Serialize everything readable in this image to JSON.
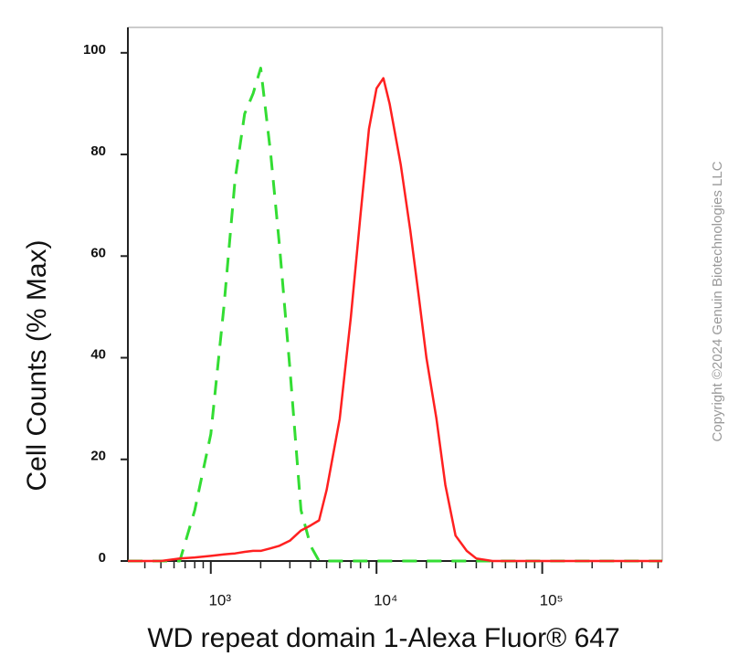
{
  "chart_data": {
    "type": "line",
    "y_label": "Cell Counts (% Max)",
    "x_label": "WD repeat domain 1-Alexa Fluor® 647",
    "copyright": "Copyright ©2024 Genuin Biotechnologies LLC",
    "xscale": "log",
    "xlim": [
      316,
      530000
    ],
    "ylim": [
      0,
      105
    ],
    "xticks": [
      {
        "value": 1000,
        "label": "10³"
      },
      {
        "value": 10000,
        "label": "10⁴"
      },
      {
        "value": 100000,
        "label": "10⁵"
      }
    ],
    "xticks_minor": [
      400,
      500,
      600,
      700,
      800,
      900,
      2000,
      3000,
      4000,
      5000,
      6000,
      7000,
      8000,
      9000,
      20000,
      30000,
      40000,
      50000,
      60000,
      70000,
      80000,
      90000,
      200000,
      300000,
      400000,
      500000
    ],
    "yticks": [
      0,
      20,
      40,
      60,
      80,
      100
    ],
    "x": [
      316,
      400,
      500,
      650,
      800,
      1000,
      1200,
      1400,
      1600,
      1800,
      2000,
      2300,
      2600,
      3000,
      3500,
      4000,
      4500,
      5000,
      6000,
      7000,
      8000,
      9000,
      10000,
      11000,
      12000,
      14000,
      16000,
      18000,
      20000,
      23000,
      26000,
      30000,
      35000,
      40000,
      50000,
      70000,
      100000,
      200000,
      530000
    ],
    "series": [
      {
        "color": "#33dd33",
        "dashed": true,
        "values": [
          0,
          0,
          0,
          0,
          10,
          25,
          50,
          75,
          88,
          92,
          97,
          80,
          62,
          38,
          10,
          3,
          0,
          0,
          0,
          0,
          0,
          0,
          0,
          0,
          0,
          0,
          0,
          0,
          0,
          0,
          0,
          0,
          0,
          0,
          0,
          0,
          0,
          0,
          0
        ]
      },
      {
        "color": "#ff2020",
        "dashed": false,
        "values": [
          0,
          0,
          0,
          0.5,
          0.7,
          1,
          1.3,
          1.5,
          1.8,
          2,
          2,
          2.5,
          3,
          4,
          6,
          7,
          8,
          14,
          28,
          48,
          68,
          85,
          93,
          95,
          90,
          78,
          65,
          52,
          40,
          28,
          15,
          5,
          2,
          0.5,
          0,
          0,
          0,
          0,
          0
        ]
      }
    ]
  }
}
